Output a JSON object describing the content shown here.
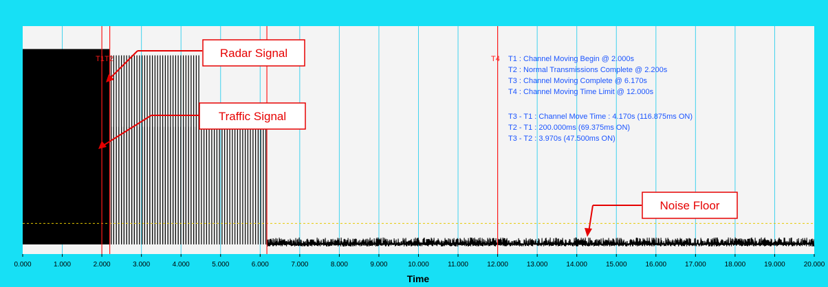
{
  "chart_data": {
    "type": "line",
    "xlabel": "Time",
    "xlim": [
      0,
      20
    ],
    "x_ticks": [
      "0.000",
      "1.000",
      "2.000",
      "3.000",
      "4.000",
      "5.000",
      "6.000",
      "7.000",
      "8.000",
      "9.000",
      "10.000",
      "11.000",
      "12.000",
      "13.000",
      "14.000",
      "15.000",
      "16.000",
      "17.000",
      "18.000",
      "19.000",
      "20.000"
    ],
    "grid": true,
    "markers": [
      {
        "name": "T1",
        "x": 2.0
      },
      {
        "name": "T2",
        "x": 2.2
      },
      {
        "name": "T3",
        "x": 6.17
      },
      {
        "name": "T4",
        "x": 12.0
      }
    ],
    "marker_labels": {
      "t1": "T1",
      "t2": "T2",
      "t4": "T4"
    },
    "threshold_level": 0.1,
    "signal_segments": [
      {
        "x_start": 0.0,
        "x_end": 2.2,
        "level": 0.93,
        "kind": "dense"
      },
      {
        "x_start": 2.2,
        "x_end": 4.5,
        "level": 0.9,
        "kind": "pulses"
      },
      {
        "x_start": 2.2,
        "x_end": 6.17,
        "level": 0.56,
        "kind": "pulses"
      },
      {
        "x_start": 6.17,
        "x_end": 20.0,
        "level": 0.03,
        "kind": "noise"
      }
    ],
    "info_lines": [
      "T1 : Channel Moving Begin @ 2.000s",
      "T2 : Normal Transmissions Complete @ 2.200s",
      "T3 : Channel Moving Complete @ 6.170s",
      "T4 : Channel Moving Time Limit @ 12.000s",
      "",
      "T3 - T1 : Channel Move Time : 4.170s (116.875ms ON)",
      "T2 - T1 : 200.000ms (69.375ms ON)",
      "T3 - T2 : 3.970s (47.500ms ON)"
    ],
    "callouts": [
      {
        "id": "radar",
        "text": "Radar Signal"
      },
      {
        "id": "traffic",
        "text": "Traffic Signal"
      },
      {
        "id": "noise",
        "text": "Noise Floor"
      }
    ]
  },
  "colors": {
    "frame_bg": "#17e0f5",
    "plot_bg": "#f4f4f4",
    "grid": "#3fd2ee",
    "signal": "#000000",
    "marker": "#ff1a1a",
    "threshold": "#e5c800",
    "info_text": "#1a54ff",
    "callout_border": "#e60000",
    "callout_text": "#e60000"
  }
}
